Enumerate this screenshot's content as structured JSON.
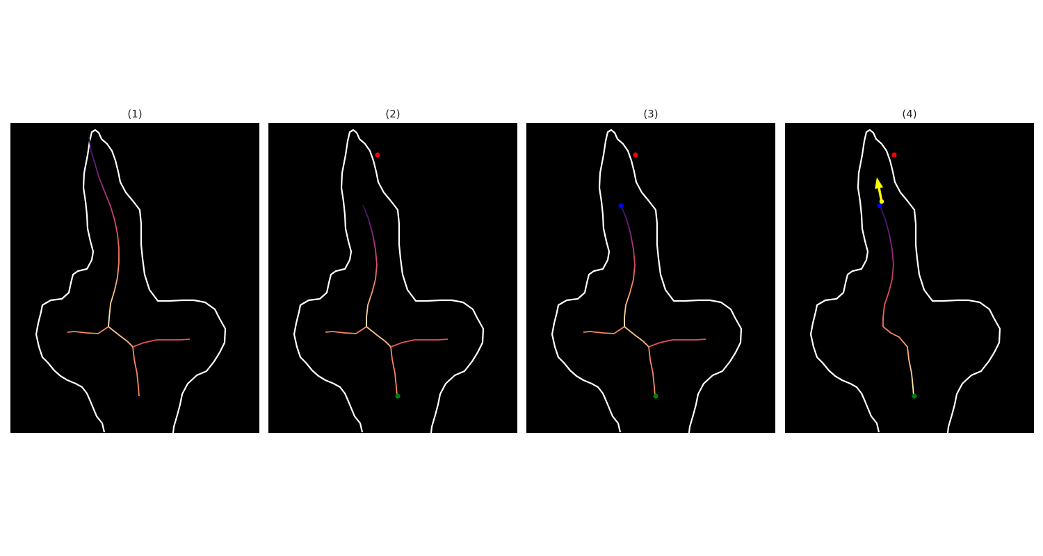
{
  "panels": [
    {
      "title": "(1)",
      "markers": [],
      "arrow": false
    },
    {
      "title": "(2)",
      "markers": [
        "start-point",
        "end-point"
      ],
      "arrow": false
    },
    {
      "title": "(3)",
      "markers": [
        "start-point",
        "end-point",
        "current-point"
      ],
      "arrow": false
    },
    {
      "title": "(4)",
      "markers": [
        "start-point",
        "end-point",
        "current-point",
        "tip-point"
      ],
      "arrow": true
    }
  ],
  "colors": {
    "background": "#000000",
    "outline": "#ffffff",
    "start_point": "#ff0000",
    "end_point": "#008000",
    "current_point": "#0000ff",
    "direction_arrow": "#ffff00",
    "path_gradient": [
      "#2d1160",
      "#721f81",
      "#b5367a",
      "#e55064",
      "#fb8761",
      "#fec287",
      "#fcfdbf"
    ]
  }
}
